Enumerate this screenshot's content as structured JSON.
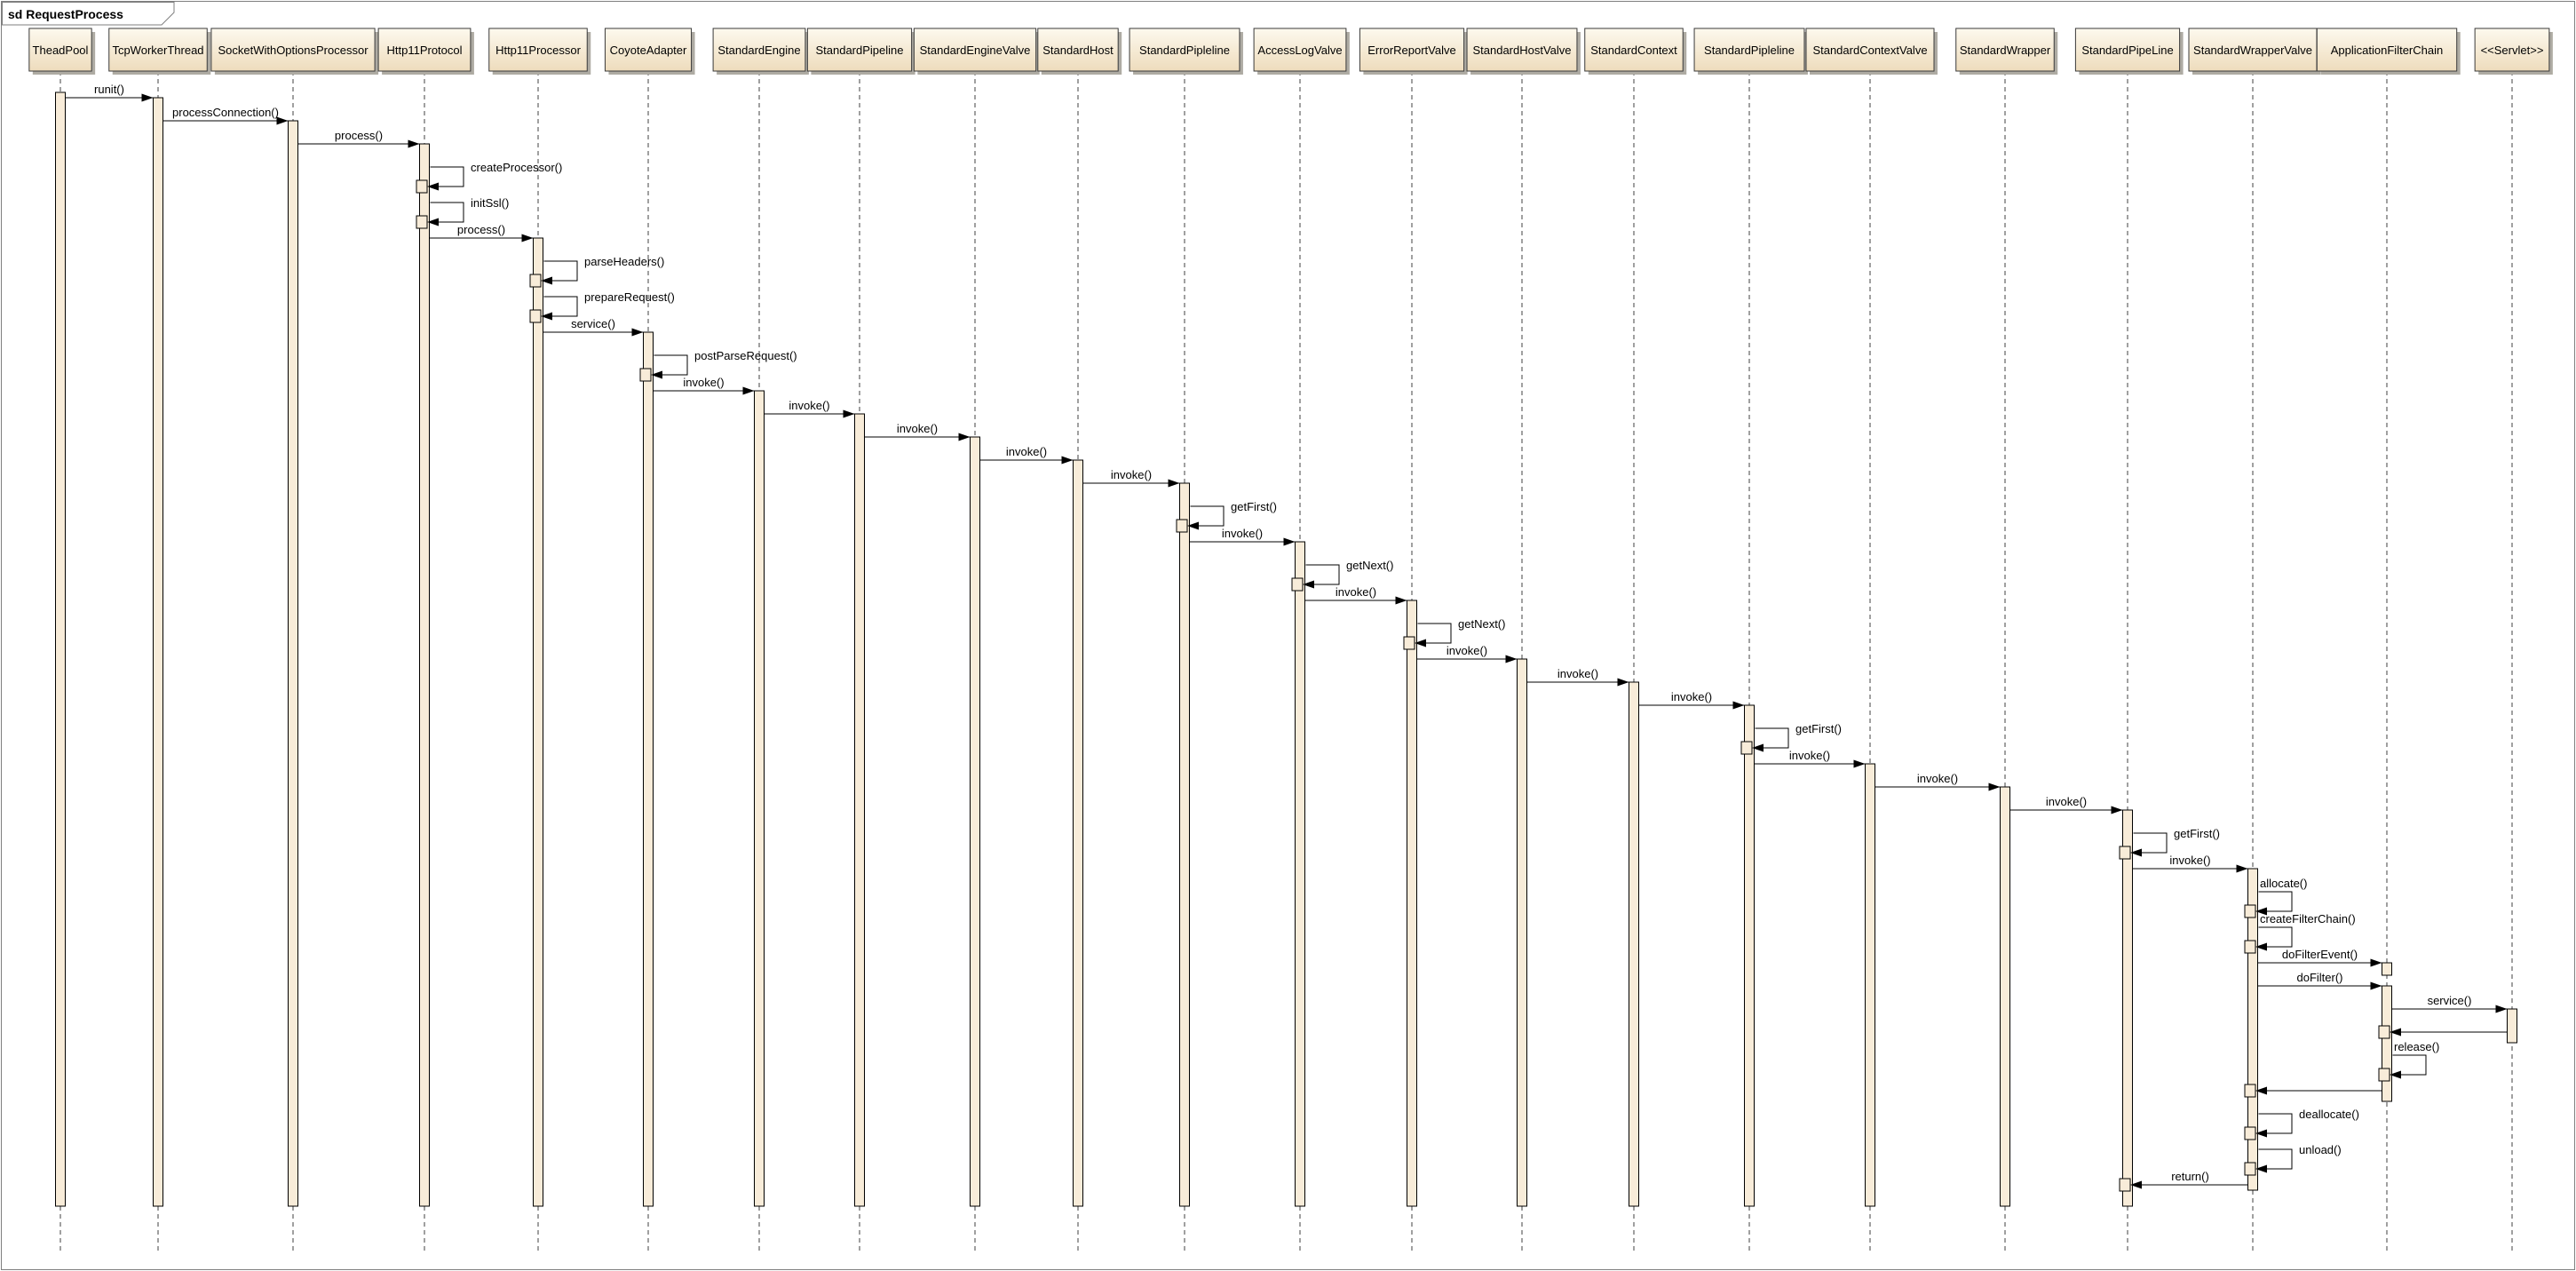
{
  "frame": {
    "title": "sd RequestProcess"
  },
  "diagram": {
    "type": "uml-sequence",
    "lifelines": [
      "TheadPool",
      "TcpWorkerThread",
      "SocketWithOptionsProcessor",
      "Http11Protocol",
      "Http11Processor",
      "CoyoteAdapter",
      "StandardEngine",
      "StandardPipeline",
      "StandardEngineValve",
      "StandardHost",
      "StandardPipleline",
      "AccessLogValve",
      "ErrorReportValve",
      "StandardHostValve",
      "StandardContext",
      "StandardPipleline",
      "StandardContextValve",
      "StandardWrapper",
      "StandardPipeLine",
      "StandardWrapperValve",
      "ApplicationFilterChain",
      "<<Servlet>>"
    ],
    "messages": [
      {
        "from": 0,
        "to": 1,
        "label": "runit()",
        "kind": "call"
      },
      {
        "from": 1,
        "to": 2,
        "label": "processConnection()",
        "kind": "call"
      },
      {
        "from": 2,
        "to": 3,
        "label": "process()",
        "kind": "call"
      },
      {
        "from": 3,
        "to": 3,
        "label": "createProcessor()",
        "kind": "self",
        "labelPos": "right"
      },
      {
        "from": 3,
        "to": 3,
        "label": "initSsl()",
        "kind": "self",
        "labelPos": "right"
      },
      {
        "from": 3,
        "to": 4,
        "label": "process()",
        "kind": "call"
      },
      {
        "from": 4,
        "to": 4,
        "label": "parseHeaders()",
        "kind": "self",
        "labelPos": "right"
      },
      {
        "from": 4,
        "to": 4,
        "label": "prepareRequest()",
        "kind": "self",
        "labelPos": "right"
      },
      {
        "from": 4,
        "to": 5,
        "label": "service()",
        "kind": "call"
      },
      {
        "from": 5,
        "to": 5,
        "label": "postParseRequest()",
        "kind": "self",
        "labelPos": "right"
      },
      {
        "from": 5,
        "to": 6,
        "label": "invoke()",
        "kind": "call"
      },
      {
        "from": 6,
        "to": 7,
        "label": "invoke()",
        "kind": "call"
      },
      {
        "from": 7,
        "to": 8,
        "label": "invoke()",
        "kind": "call"
      },
      {
        "from": 8,
        "to": 9,
        "label": "invoke()",
        "kind": "call"
      },
      {
        "from": 9,
        "to": 10,
        "label": "invoke()",
        "kind": "call"
      },
      {
        "from": 10,
        "to": 10,
        "label": "getFirst()",
        "kind": "self",
        "labelPos": "right"
      },
      {
        "from": 10,
        "to": 11,
        "label": "invoke()",
        "kind": "call"
      },
      {
        "from": 11,
        "to": 11,
        "label": "getNext()",
        "kind": "self",
        "labelPos": "right"
      },
      {
        "from": 11,
        "to": 12,
        "label": "invoke()",
        "kind": "call"
      },
      {
        "from": 12,
        "to": 12,
        "label": "getNext()",
        "kind": "self",
        "labelPos": "right"
      },
      {
        "from": 12,
        "to": 13,
        "label": "invoke()",
        "kind": "call"
      },
      {
        "from": 13,
        "to": 14,
        "label": "invoke()",
        "kind": "call"
      },
      {
        "from": 14,
        "to": 15,
        "label": "invoke()",
        "kind": "call"
      },
      {
        "from": 15,
        "to": 15,
        "label": "getFirst()",
        "kind": "self",
        "labelPos": "right"
      },
      {
        "from": 15,
        "to": 16,
        "label": "invoke()",
        "kind": "call"
      },
      {
        "from": 16,
        "to": 17,
        "label": "invoke()",
        "kind": "call"
      },
      {
        "from": 17,
        "to": 18,
        "label": "invoke()",
        "kind": "call"
      },
      {
        "from": 18,
        "to": 18,
        "label": "getFirst()",
        "kind": "self",
        "labelPos": "right"
      },
      {
        "from": 18,
        "to": 19,
        "label": "invoke()",
        "kind": "call"
      },
      {
        "from": 19,
        "to": 19,
        "label": "allocate()",
        "kind": "self",
        "labelPos": "above"
      },
      {
        "from": 19,
        "to": 19,
        "label": "createFilterChain()",
        "kind": "self",
        "labelPos": "above"
      },
      {
        "from": 19,
        "to": 20,
        "label": "doFilterEvent()",
        "kind": "call",
        "shortActivation": true
      },
      {
        "from": 19,
        "to": 20,
        "label": "doFilter()",
        "kind": "call"
      },
      {
        "from": 20,
        "to": 21,
        "label": "service()",
        "kind": "call"
      },
      {
        "from": 21,
        "to": 20,
        "label": "",
        "kind": "return"
      },
      {
        "from": 20,
        "to": 20,
        "label": "release()",
        "kind": "self",
        "labelPos": "above"
      },
      {
        "from": 20,
        "to": 19,
        "label": "",
        "kind": "return"
      },
      {
        "from": 19,
        "to": 19,
        "label": "deallocate()",
        "kind": "self",
        "labelPos": "right"
      },
      {
        "from": 19,
        "to": 19,
        "label": "unload()",
        "kind": "self",
        "labelPos": "right"
      },
      {
        "from": 19,
        "to": 18,
        "label": "return()",
        "kind": "return"
      }
    ]
  },
  "colors": {
    "background": "#ffffff",
    "frame_border": "#7f7f7f",
    "box_fill_light": "#fdf9ee",
    "box_fill_dark": "#eedcbc",
    "box_border": "#3a3a3a",
    "box_shadow": "#aeaba3",
    "activation_fill": "#f8ecd9",
    "activation_border": "#000000",
    "lifeline_color": "#404040",
    "message_color": "#000000",
    "text_color": "#000000"
  }
}
